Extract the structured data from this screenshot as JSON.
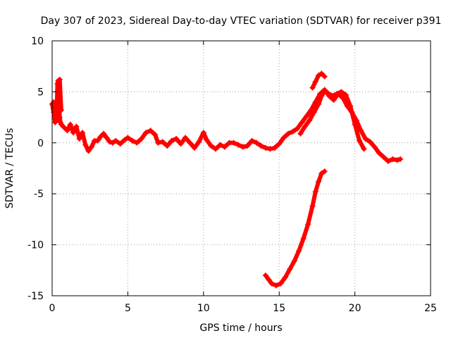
{
  "chart_data": {
    "type": "scatter",
    "title": "Day 307 of 2023, Sidereal Day-to-day VTEC variation (SDTVAR) for receiver p391",
    "xlabel": "GPS time / hours",
    "ylabel": "SDTVAR / TECUs",
    "xlim": [
      0,
      25
    ],
    "ylim": [
      -15,
      10
    ],
    "xticks": [
      0,
      5,
      10,
      15,
      20,
      25
    ],
    "yticks": [
      -15,
      -10,
      -5,
      0,
      5,
      10
    ],
    "xtick_labels": [
      "0",
      "5",
      "10",
      "15",
      "20",
      "25"
    ],
    "ytick_labels": [
      "-15",
      "-10",
      "-5",
      "0",
      "5",
      "10"
    ],
    "grid": true,
    "marker": "+",
    "color": "#ff0000",
    "series": [
      {
        "name": "main-track",
        "x": [
          0.1,
          0.2,
          0.3,
          0.35,
          0.4,
          0.45,
          0.5,
          0.55,
          0.6,
          0.8,
          1.0,
          1.2,
          1.4,
          1.6,
          1.8,
          2.0,
          2.2,
          2.4,
          2.6,
          2.8,
          3.0,
          3.2,
          3.4,
          3.6,
          3.8,
          4.0,
          4.2,
          4.5,
          4.8,
          5.0,
          5.3,
          5.6,
          5.9,
          6.2,
          6.5,
          6.8,
          7.0,
          7.3,
          7.6,
          7.9,
          8.2,
          8.5,
          8.8,
          9.1,
          9.4,
          9.7,
          10.0,
          10.2,
          10.5,
          10.8,
          11.1,
          11.4,
          11.7,
          12.0,
          12.3,
          12.6,
          12.9,
          13.2,
          13.5,
          13.8,
          14.1,
          14.4,
          14.7,
          15.0,
          15.3,
          15.6,
          15.9,
          16.2,
          16.5,
          16.8,
          17.1,
          17.4,
          17.7,
          18.0,
          18.3,
          18.6,
          18.9,
          19.2,
          19.5,
          19.8,
          20.1,
          20.4,
          20.7,
          21.0,
          21.3,
          21.6,
          21.9,
          22.2,
          22.5,
          22.8,
          23.0
        ],
        "y": [
          4.0,
          3.6,
          2.8,
          5.8,
          6.1,
          4.0,
          2.5,
          2.0,
          1.8,
          1.5,
          1.2,
          1.8,
          1.0,
          1.6,
          0.4,
          1.0,
          -0.2,
          -0.8,
          -0.4,
          0.2,
          0.2,
          0.6,
          0.9,
          0.5,
          0.1,
          0.0,
          0.2,
          -0.1,
          0.3,
          0.5,
          0.2,
          0.0,
          0.4,
          1.0,
          1.2,
          0.8,
          0.0,
          0.1,
          -0.3,
          0.2,
          0.4,
          -0.1,
          0.5,
          0.0,
          -0.5,
          0.1,
          1.0,
          0.3,
          -0.3,
          -0.6,
          -0.2,
          -0.4,
          0.0,
          0.0,
          -0.2,
          -0.4,
          -0.3,
          0.2,
          0.0,
          -0.3,
          -0.5,
          -0.6,
          -0.5,
          -0.1,
          0.5,
          0.9,
          1.1,
          1.4,
          2.0,
          2.6,
          3.2,
          4.0,
          4.8,
          5.2,
          4.6,
          4.2,
          4.8,
          4.4,
          3.6,
          3.0,
          2.2,
          1.2,
          0.4,
          0.1,
          -0.4,
          -1.0,
          -1.4,
          -1.8,
          -1.6,
          -1.7,
          -1.6
        ]
      },
      {
        "name": "upper-arc",
        "x": [
          16.4,
          16.7,
          17.0,
          17.3,
          17.6,
          17.8,
          18.0,
          18.2,
          18.5,
          18.8,
          19.1,
          19.4,
          19.7,
          20.0,
          20.3,
          20.6
        ],
        "y": [
          0.9,
          1.6,
          2.2,
          3.0,
          3.8,
          4.6,
          5.1,
          4.9,
          4.6,
          4.8,
          5.0,
          4.7,
          3.6,
          1.8,
          0.2,
          -0.6
        ]
      },
      {
        "name": "peak-spike",
        "x": [
          17.2,
          17.4,
          17.6,
          17.8,
          18.0
        ],
        "y": [
          5.4,
          6.0,
          6.6,
          6.8,
          6.5
        ]
      },
      {
        "name": "lower-track",
        "x": [
          14.1,
          14.3,
          14.5,
          14.8,
          15.1,
          15.4,
          15.7,
          16.0,
          16.3,
          16.6,
          16.9,
          17.2,
          17.4,
          17.6,
          17.8,
          18.0
        ],
        "y": [
          -13.0,
          -13.4,
          -13.8,
          -14.0,
          -13.8,
          -13.2,
          -12.4,
          -11.6,
          -10.6,
          -9.4,
          -8.0,
          -6.2,
          -4.8,
          -3.8,
          -3.0,
          -2.8
        ]
      },
      {
        "name": "early-cluster",
        "x": [
          0.0,
          0.1,
          0.2,
          0.3,
          0.4,
          0.5,
          0.6
        ],
        "y": [
          3.8,
          3.0,
          2.0,
          2.2,
          5.0,
          6.2,
          3.2
        ]
      }
    ]
  }
}
